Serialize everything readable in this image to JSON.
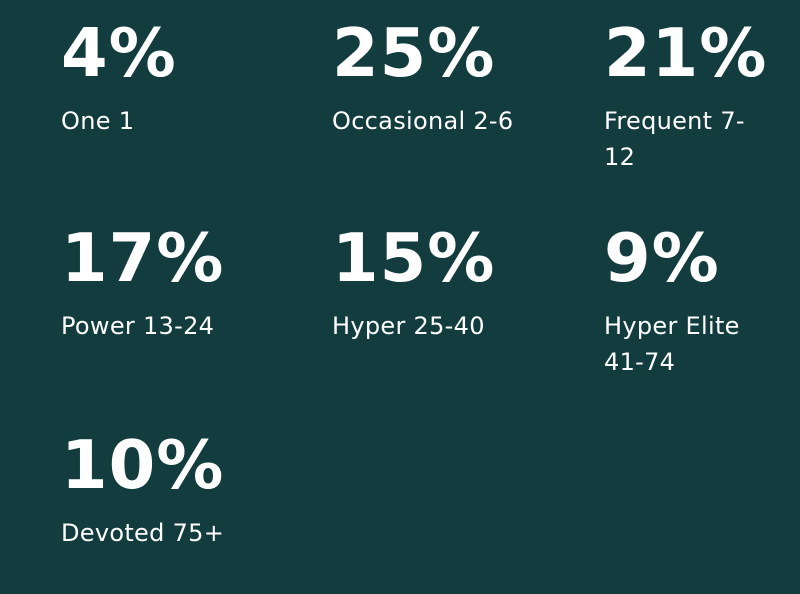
{
  "stats": [
    {
      "value": "4%",
      "label": "One 1"
    },
    {
      "value": "25%",
      "label": "Occasional 2-6"
    },
    {
      "value": "21%",
      "label": "Frequent 7-12"
    },
    {
      "value": "17%",
      "label": "Power 13-24"
    },
    {
      "value": "15%",
      "label": "Hyper 25-40"
    },
    {
      "value": "9%",
      "label": "Hyper Elite 41-74"
    },
    {
      "value": "10%",
      "label": "Devoted 75+"
    }
  ],
  "colors": {
    "background": "#123c3e",
    "text": "#ffffff"
  }
}
